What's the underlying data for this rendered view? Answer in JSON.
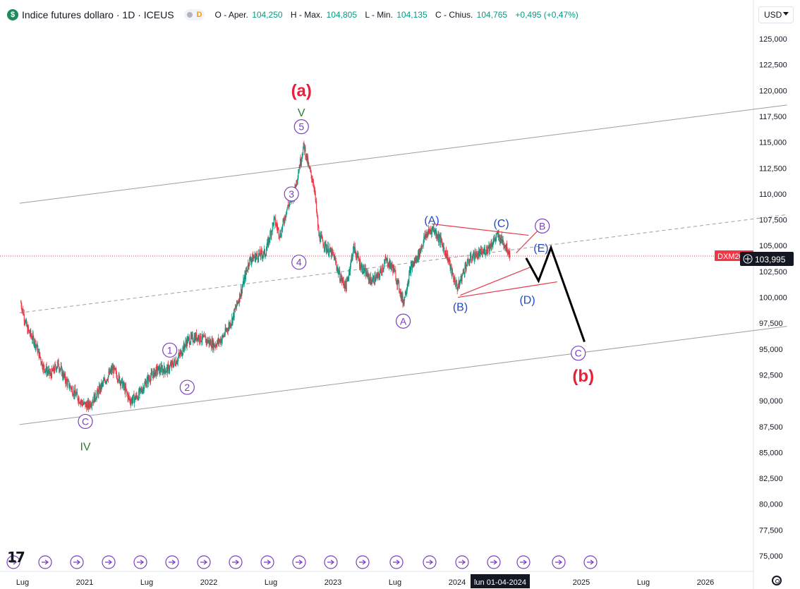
{
  "header": {
    "symbol_icon": "$",
    "title": "Indice futures dollaro · 1D · ICEUS",
    "interval_badge": "D",
    "ohlc": [
      {
        "label": "O - Aper.",
        "value": "104,250"
      },
      {
        "label": "H - Max.",
        "value": "104,805"
      },
      {
        "label": "L - Min.",
        "value": "104,135"
      },
      {
        "label": "C - Chius.",
        "value": "104,765"
      },
      {
        "label": "",
        "value": "+0,495 (+0,47%)"
      }
    ]
  },
  "currency_selector": {
    "value": "USD"
  },
  "colors": {
    "up": "#089981",
    "down": "#f23645",
    "wave_purple": "#7b3fbf",
    "wave_blue": "#2148c7",
    "wave_green": "#2e7d32",
    "wave_red": "#e91e3a",
    "channel": "#9e9e9e",
    "triangle": "#e63946",
    "projection": "#000000",
    "price_tag": "#f23645"
  },
  "chart_data": {
    "type": "candlestick",
    "title": "Indice futures dollaro",
    "ylim": [
      73500,
      126300
    ],
    "y_ticks": [
      "125,000",
      "122,500",
      "120,000",
      "117,500",
      "115,000",
      "112,500",
      "110,000",
      "107,500",
      "105,000",
      "102,500",
      "100,000",
      "97,500",
      "95,000",
      "92,500",
      "90,000",
      "87,500",
      "85,000",
      "82,500",
      "80,000",
      "77,500",
      "75,000"
    ],
    "x_tick_labels": [
      "Lug",
      "2021",
      "Lug",
      "2022",
      "Lug",
      "2023",
      "Lug",
      "2024",
      "Lug",
      "2025",
      "Lug",
      "2026"
    ],
    "x_range": [
      "2020-06",
      "2026-05"
    ],
    "current_price": {
      "tag": "DXM2024",
      "value": "103,995"
    },
    "crosshair_date": "lun 01-04-2024",
    "price_path": [
      [
        2020.48,
        99.5
      ],
      [
        2020.53,
        97.0
      ],
      [
        2020.6,
        95.5
      ],
      [
        2020.66,
        93.3
      ],
      [
        2020.72,
        92.5
      ],
      [
        2020.78,
        93.6
      ],
      [
        2020.84,
        92.0
      ],
      [
        2020.91,
        90.8
      ],
      [
        2020.98,
        89.7
      ],
      [
        2021.02,
        89.5
      ],
      [
        2021.08,
        90.4
      ],
      [
        2021.15,
        91.8
      ],
      [
        2021.22,
        93.1
      ],
      [
        2021.3,
        91.6
      ],
      [
        2021.36,
        90.0
      ],
      [
        2021.42,
        90.4
      ],
      [
        2021.5,
        92.0
      ],
      [
        2021.58,
        93.0
      ],
      [
        2021.66,
        93.0
      ],
      [
        2021.74,
        94.0
      ],
      [
        2021.82,
        95.8
      ],
      [
        2021.9,
        96.2
      ],
      [
        2021.98,
        95.8
      ],
      [
        2022.04,
        95.4
      ],
      [
        2022.1,
        96.0
      ],
      [
        2022.18,
        97.8
      ],
      [
        2022.26,
        100.8
      ],
      [
        2022.32,
        103.6
      ],
      [
        2022.38,
        104.0
      ],
      [
        2022.45,
        104.3
      ],
      [
        2022.52,
        107.5
      ],
      [
        2022.57,
        106.0
      ],
      [
        2022.62,
        108.5
      ],
      [
        2022.68,
        110.0
      ],
      [
        2022.72,
        112.5
      ],
      [
        2022.76,
        114.7
      ],
      [
        2022.8,
        112.5
      ],
      [
        2022.84,
        111.0
      ],
      [
        2022.88,
        106.0
      ],
      [
        2022.94,
        104.8
      ],
      [
        2023.0,
        104.0
      ],
      [
        2023.05,
        102.0
      ],
      [
        2023.1,
        101.0
      ],
      [
        2023.16,
        104.8
      ],
      [
        2023.22,
        103.0
      ],
      [
        2023.3,
        101.6
      ],
      [
        2023.36,
        102.0
      ],
      [
        2023.42,
        103.6
      ],
      [
        2023.48,
        102.8
      ],
      [
        2023.52,
        101.2
      ],
      [
        2023.56,
        99.5
      ],
      [
        2023.62,
        102.8
      ],
      [
        2023.68,
        104.0
      ],
      [
        2023.74,
        106.0
      ],
      [
        2023.8,
        106.7
      ],
      [
        2023.86,
        105.5
      ],
      [
        2023.92,
        103.8
      ],
      [
        2023.96,
        102.0
      ],
      [
        2024.0,
        100.9
      ],
      [
        2024.06,
        103.0
      ],
      [
        2024.12,
        104.0
      ],
      [
        2024.2,
        104.3
      ],
      [
        2024.26,
        105.0
      ],
      [
        2024.32,
        106.0
      ],
      [
        2024.37,
        105.3
      ],
      [
        2024.42,
        104.2
      ]
    ],
    "annotations": {
      "circled": [
        {
          "label": "C",
          "x": 2021.0,
          "y": 88.0,
          "color": "wave_purple"
        },
        {
          "label": "1",
          "x": 2021.68,
          "y": 94.9,
          "color": "wave_purple"
        },
        {
          "label": "2",
          "x": 2021.82,
          "y": 91.3,
          "color": "wave_purple"
        },
        {
          "label": "3",
          "x": 2022.66,
          "y": 110.0,
          "color": "wave_purple"
        },
        {
          "label": "4",
          "x": 2022.72,
          "y": 103.4,
          "color": "wave_purple"
        },
        {
          "label": "5",
          "x": 2022.74,
          "y": 116.5,
          "color": "wave_purple"
        },
        {
          "label": "A",
          "x": 2023.56,
          "y": 97.7,
          "color": "wave_purple"
        },
        {
          "label": "B",
          "x": 2024.68,
          "y": 106.9,
          "color": "wave_purple"
        },
        {
          "label": "C",
          "x": 2024.97,
          "y": 94.6,
          "color": "wave_purple"
        }
      ],
      "text": [
        {
          "label": "(a)",
          "x": 2022.74,
          "y": 120.0,
          "color": "wave_red",
          "size": "large"
        },
        {
          "label": "V",
          "x": 2022.74,
          "y": 117.9,
          "color": "wave_green"
        },
        {
          "label": "IV",
          "x": 2021.0,
          "y": 85.6,
          "color": "wave_green"
        },
        {
          "label": "(A)",
          "x": 2023.79,
          "y": 107.5,
          "color": "wave_blue"
        },
        {
          "label": "(B)",
          "x": 2024.02,
          "y": 99.1,
          "color": "wave_blue"
        },
        {
          "label": "(C)",
          "x": 2024.35,
          "y": 107.2,
          "color": "wave_blue"
        },
        {
          "label": "(D)",
          "x": 2024.56,
          "y": 99.8,
          "color": "wave_blue"
        },
        {
          "label": "(E)",
          "x": 2024.67,
          "y": 104.8,
          "color": "wave_blue"
        },
        {
          "label": "(b)",
          "x": 2025.01,
          "y": 92.4,
          "color": "wave_red",
          "size": "large"
        }
      ]
    },
    "channel_upper": [
      [
        2020.47,
        109.1
      ],
      [
        2026.65,
        118.6
      ]
    ],
    "channel_middle": [
      [
        2020.47,
        98.5
      ],
      [
        2026.65,
        108.0
      ]
    ],
    "channel_lower": [
      [
        2020.47,
        87.7
      ],
      [
        2026.65,
        97.2
      ]
    ],
    "triangle_upper": [
      [
        2023.79,
        107.1
      ],
      [
        2024.57,
        106.0
      ]
    ],
    "triangle_lower": [
      [
        2024.02,
        100.2
      ],
      [
        2024.58,
        102.9
      ]
    ],
    "triangle_upper2": [
      [
        2024.47,
        104.3
      ],
      [
        2024.64,
        106.4
      ]
    ],
    "triangle_lower2": [
      [
        2024.0,
        100.0
      ],
      [
        2024.8,
        101.5
      ]
    ],
    "projection_path": [
      [
        2024.55,
        103.8
      ],
      [
        2024.65,
        101.6
      ],
      [
        2024.75,
        104.8
      ],
      [
        2025.02,
        95.7
      ]
    ]
  },
  "footer": {
    "events_count": 19,
    "logo_text": "17"
  }
}
